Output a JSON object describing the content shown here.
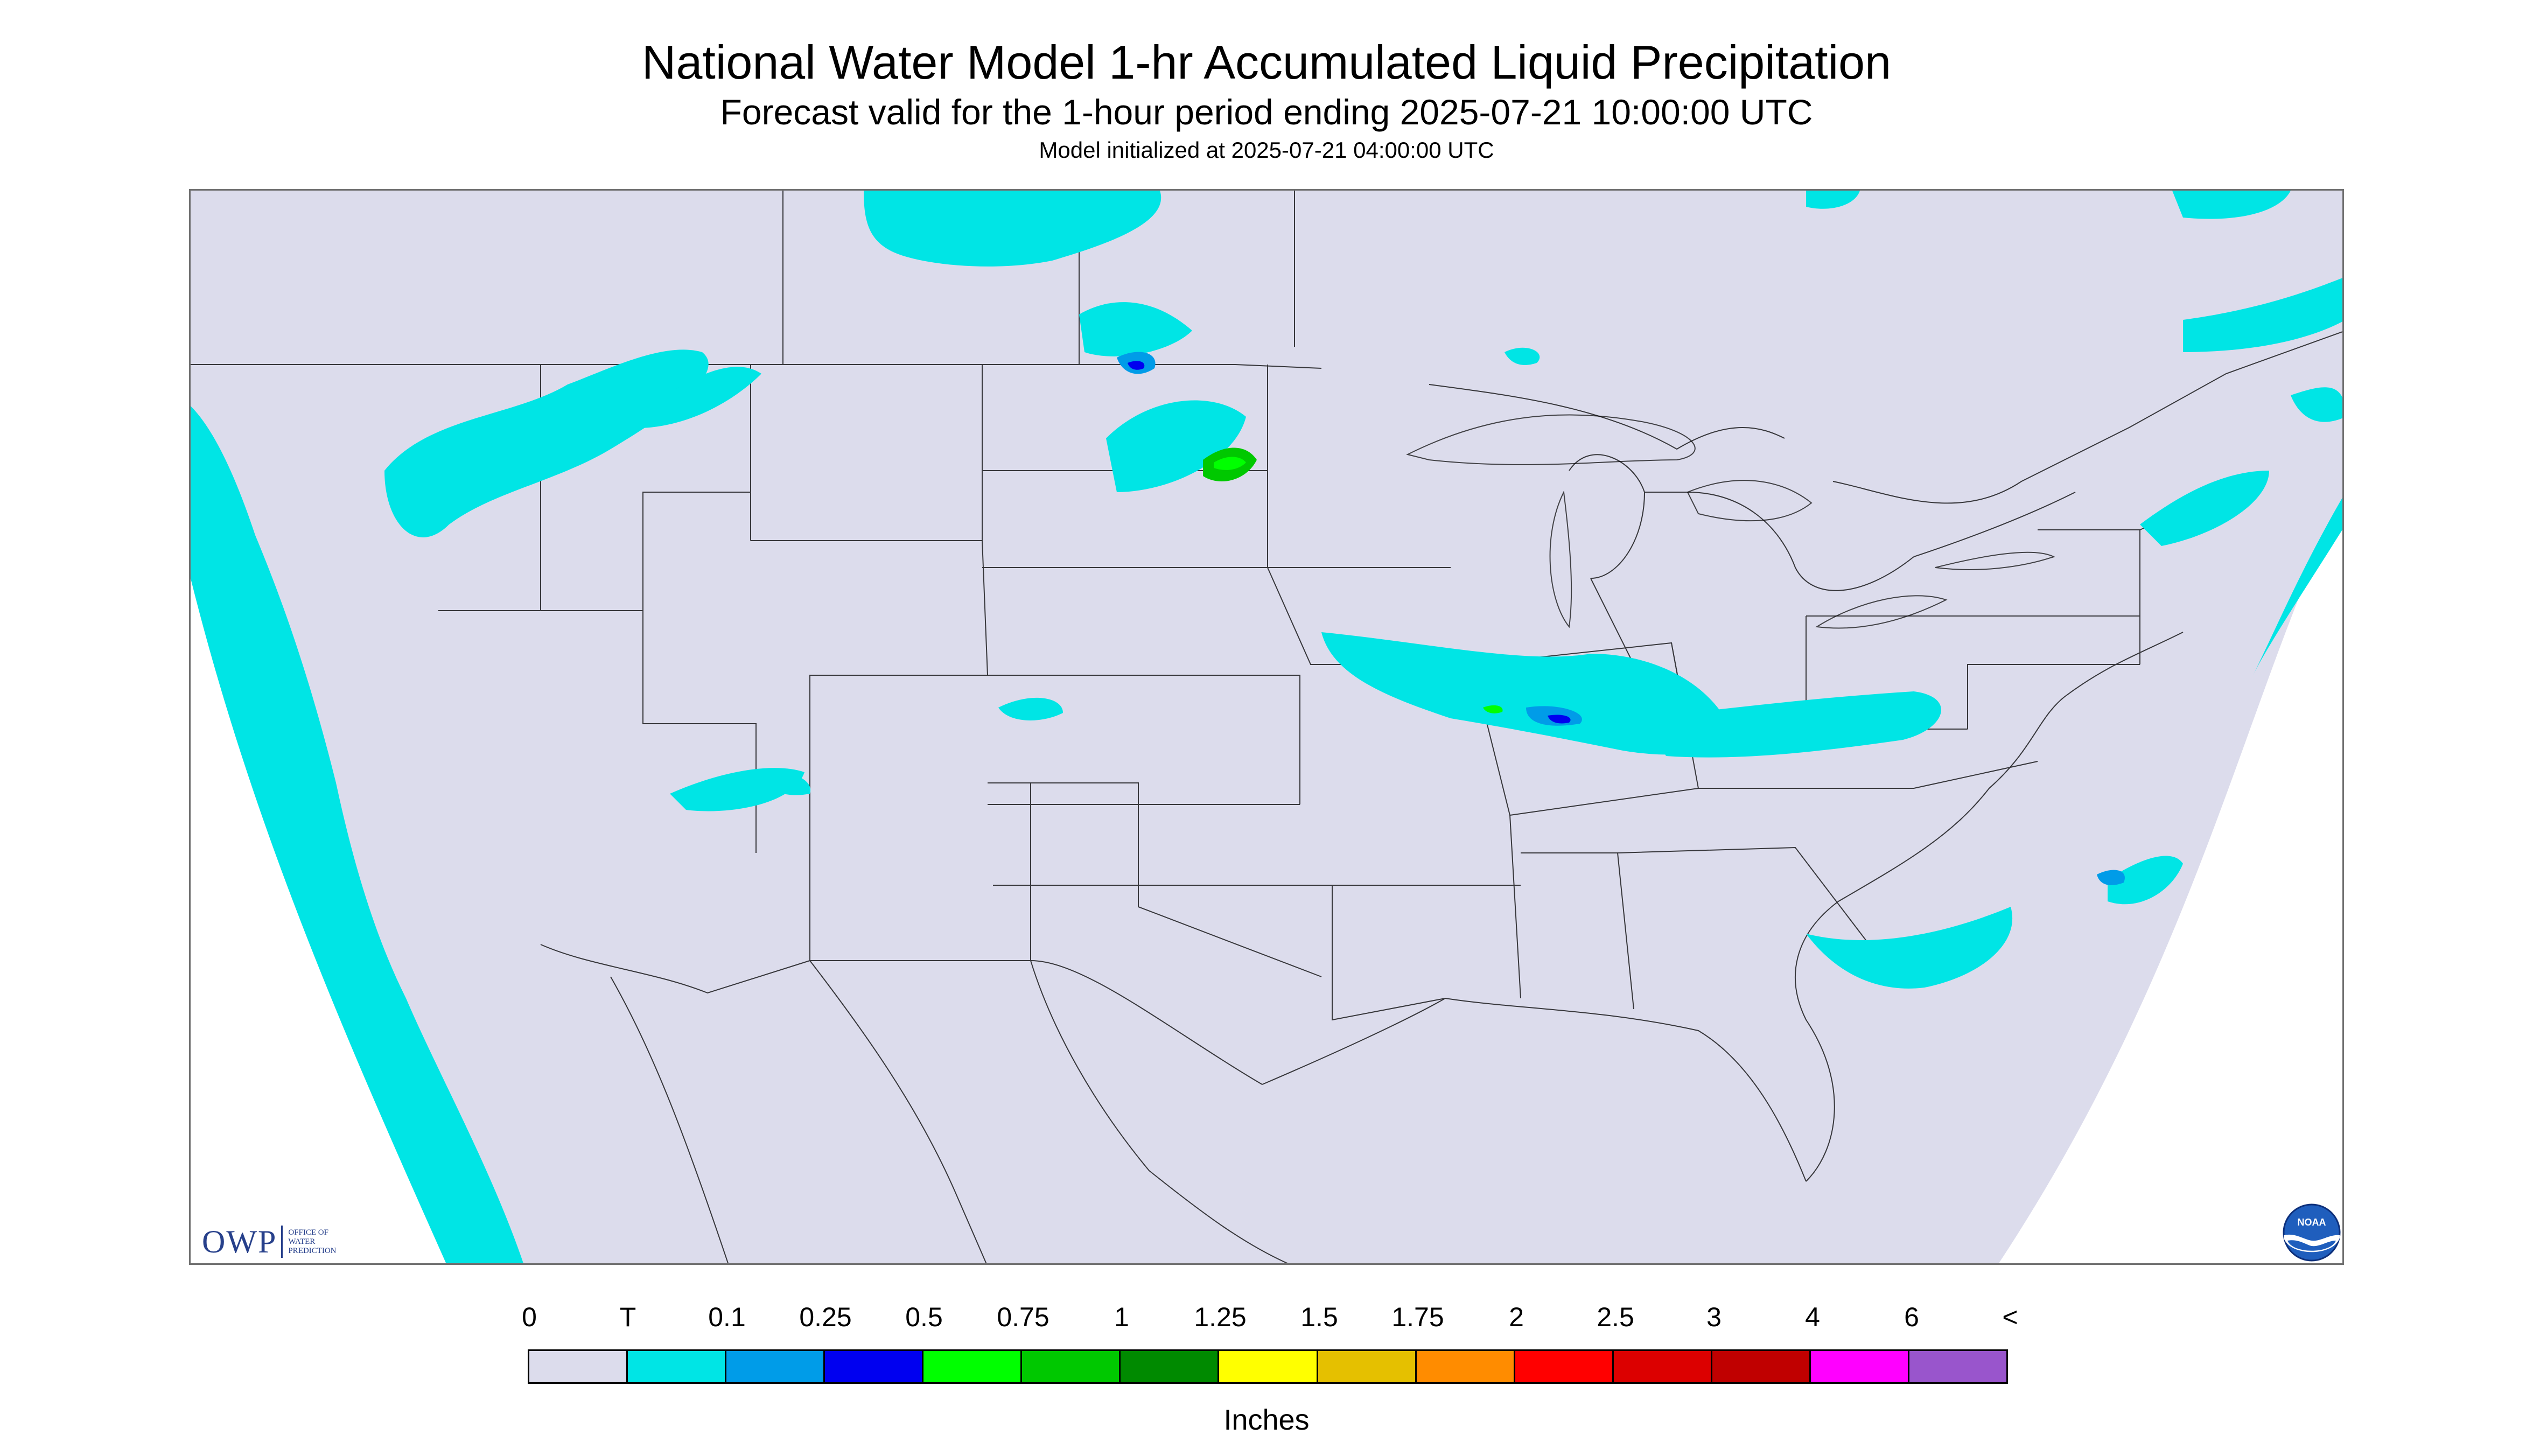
{
  "title": "National Water Model 1-hr Accumulated Liquid Precipitation",
  "subtitle": "Forecast valid for the 1-hour period ending 2025-07-21 10:00:00 UTC",
  "init": "Model initialized at 2025-07-21 04:00:00 UTC",
  "map": {
    "background_color": "#DCDCEC",
    "outside_color": "#FFFFFF",
    "boundary_color": "#000000",
    "precip_regions": [
      {
        "area": "Pacific coast offshore",
        "category": "T"
      },
      {
        "area": "Montana / Idaho",
        "category": "T"
      },
      {
        "area": "Eastern North Dakota",
        "category": "0.1-1"
      },
      {
        "area": "Iowa / Illinois / Ohio Valley",
        "category": "T-0.75"
      },
      {
        "area": "Virginia / West Virginia",
        "category": "T-0.25"
      },
      {
        "area": "Atlantic offshore",
        "category": "T-0.25"
      },
      {
        "area": "Southern Canada",
        "category": "T"
      }
    ]
  },
  "logos": {
    "owp_mark": "OWP",
    "owp_text": [
      "OFFICE OF",
      "WATER",
      "PREDICTION"
    ],
    "noaa_text": "NOAA"
  },
  "legend": {
    "labels": [
      "0",
      "T",
      "0.1",
      "0.25",
      "0.5",
      "0.75",
      "1",
      "1.25",
      "1.5",
      "1.75",
      "2",
      "2.5",
      "3",
      "4",
      "6",
      "<"
    ],
    "colors": [
      "#DCDCEC",
      "#00E5E5",
      "#009CE8",
      "#0000F0",
      "#00FF00",
      "#00C800",
      "#008A00",
      "#FFFF00",
      "#E5C000",
      "#FF8C00",
      "#FF0000",
      "#DC0000",
      "#C00000",
      "#FF00FF",
      "#9955CC"
    ],
    "units": "Inches"
  }
}
